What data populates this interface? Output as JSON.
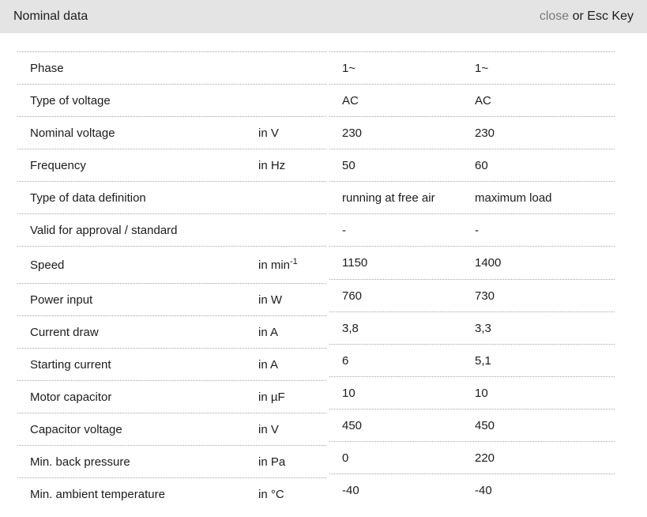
{
  "header": {
    "title": "Nominal data",
    "close_label": "close",
    "esc_label": " or Esc Key"
  },
  "colors": {
    "header_bg": "#e4e4e4",
    "text": "#1c1c1c",
    "close_link": "#7a7a7a",
    "divider_dotted": "#a6a6a6"
  },
  "table": {
    "rows": [
      {
        "label": "Phase",
        "unit": "",
        "unit_sup": "",
        "value1": "1~",
        "value2": "1~"
      },
      {
        "label": "Type of voltage",
        "unit": "",
        "unit_sup": "",
        "value1": "AC",
        "value2": "AC"
      },
      {
        "label": "Nominal voltage",
        "unit": "in V",
        "unit_sup": "",
        "value1": "230",
        "value2": "230"
      },
      {
        "label": "Frequency",
        "unit": "in Hz",
        "unit_sup": "",
        "value1": "50",
        "value2": "60"
      },
      {
        "label": "Type of data definition",
        "unit": "",
        "unit_sup": "",
        "value1": "running at free air",
        "value2": "maximum load"
      },
      {
        "label": "Valid for approval / standard",
        "unit": "",
        "unit_sup": "",
        "value1": "-",
        "value2": "-"
      },
      {
        "label": "Speed",
        "unit": "in min",
        "unit_sup": "-1",
        "value1": "1150",
        "value2": "1400"
      },
      {
        "label": "Power input",
        "unit": "in W",
        "unit_sup": "",
        "value1": "760",
        "value2": "730"
      },
      {
        "label": "Current draw",
        "unit": "in A",
        "unit_sup": "",
        "value1": "3,8",
        "value2": "3,3"
      },
      {
        "label": "Starting current",
        "unit": "in A",
        "unit_sup": "",
        "value1": "6",
        "value2": "5,1"
      },
      {
        "label": "Motor capacitor",
        "unit": "in µF",
        "unit_sup": "",
        "value1": "10",
        "value2": "10"
      },
      {
        "label": "Capacitor voltage",
        "unit": "in V",
        "unit_sup": "",
        "value1": "450",
        "value2": "450"
      },
      {
        "label": "Min. back pressure",
        "unit": "in Pa",
        "unit_sup": "",
        "value1": "0",
        "value2": "220"
      },
      {
        "label": "Min. ambient temperature",
        "unit": "in °C",
        "unit_sup": "",
        "value1": "-40",
        "value2": "-40"
      }
    ]
  }
}
